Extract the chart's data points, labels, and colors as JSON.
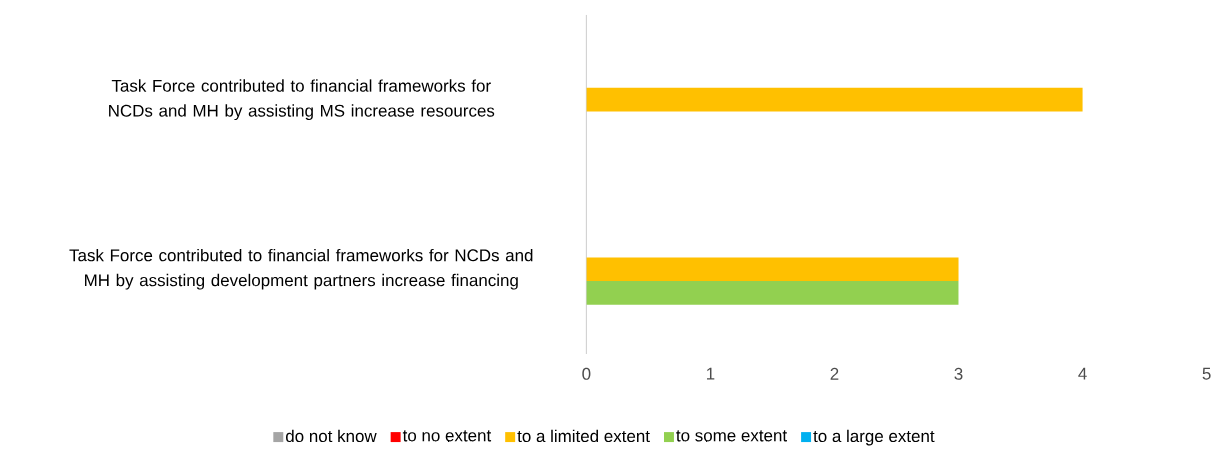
{
  "chart_data": {
    "type": "bar",
    "orientation": "horizontal",
    "categories": [
      "Task Force contributed to financial frameworks for NCDs and MH by assisting MS increase resources",
      "Task Force contributed to financial frameworks for NCDs and MH by  assisting development partners increase financing"
    ],
    "series": [
      {
        "name": "do not know",
        "color": "#a5a5a5",
        "values": [
          null,
          null
        ]
      },
      {
        "name": "to no extent",
        "color": "#ff0000",
        "values": [
          null,
          null
        ]
      },
      {
        "name": "to a limited extent",
        "color": "#ffc000",
        "values": [
          4,
          3
        ]
      },
      {
        "name": "to some extent",
        "color": "#92d050",
        "values": [
          null,
          3
        ]
      },
      {
        "name": "to a large extent",
        "color": "#00b0f0",
        "values": [
          null,
          null
        ]
      }
    ],
    "xlim": [
      0,
      5
    ],
    "xticks": [
      0,
      1,
      2,
      3,
      4,
      5
    ],
    "grid": false,
    "legend": "bottom"
  }
}
